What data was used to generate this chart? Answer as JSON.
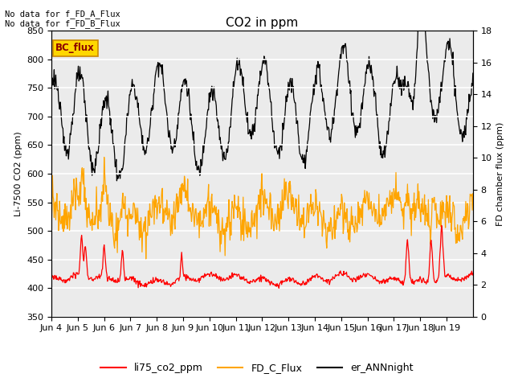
{
  "title": "CO2 in ppm",
  "ylabel_left": "Li-7500 CO2 (ppm)",
  "ylabel_right": "FD chamber flux (ppm)",
  "ylim_left": [
    350,
    850
  ],
  "ylim_right": [
    0,
    18
  ],
  "yticks_left": [
    350,
    400,
    450,
    500,
    550,
    600,
    650,
    700,
    750,
    800,
    850
  ],
  "yticks_right": [
    0,
    2,
    4,
    6,
    8,
    10,
    12,
    14,
    16,
    18
  ],
  "xtick_labels": [
    "Jun 4",
    "Jun 5",
    "Jun 6",
    "Jun 7",
    "Jun 8",
    "Jun 9",
    "Jun 10",
    "Jun 11",
    "Jun 12",
    "Jun 13",
    "Jun 14",
    "Jun 15",
    "Jun 16",
    "Jun 17",
    "Jun 18",
    "Jun 19"
  ],
  "n_days": 16,
  "legend_labels": [
    "li75_co2_ppm",
    "FD_C_Flux",
    "er_ANNnight"
  ],
  "legend_colors": [
    "#ff0000",
    "#ffa500",
    "#000000"
  ],
  "text_no_data": [
    "No data for f_FD_A_Flux",
    "No data for f_FD_B_Flux"
  ],
  "bc_flux_label": "BC_flux",
  "background_color": "#ebebeb",
  "grid_color": "#ffffff",
  "figsize": [
    6.4,
    4.8
  ],
  "dpi": 100
}
